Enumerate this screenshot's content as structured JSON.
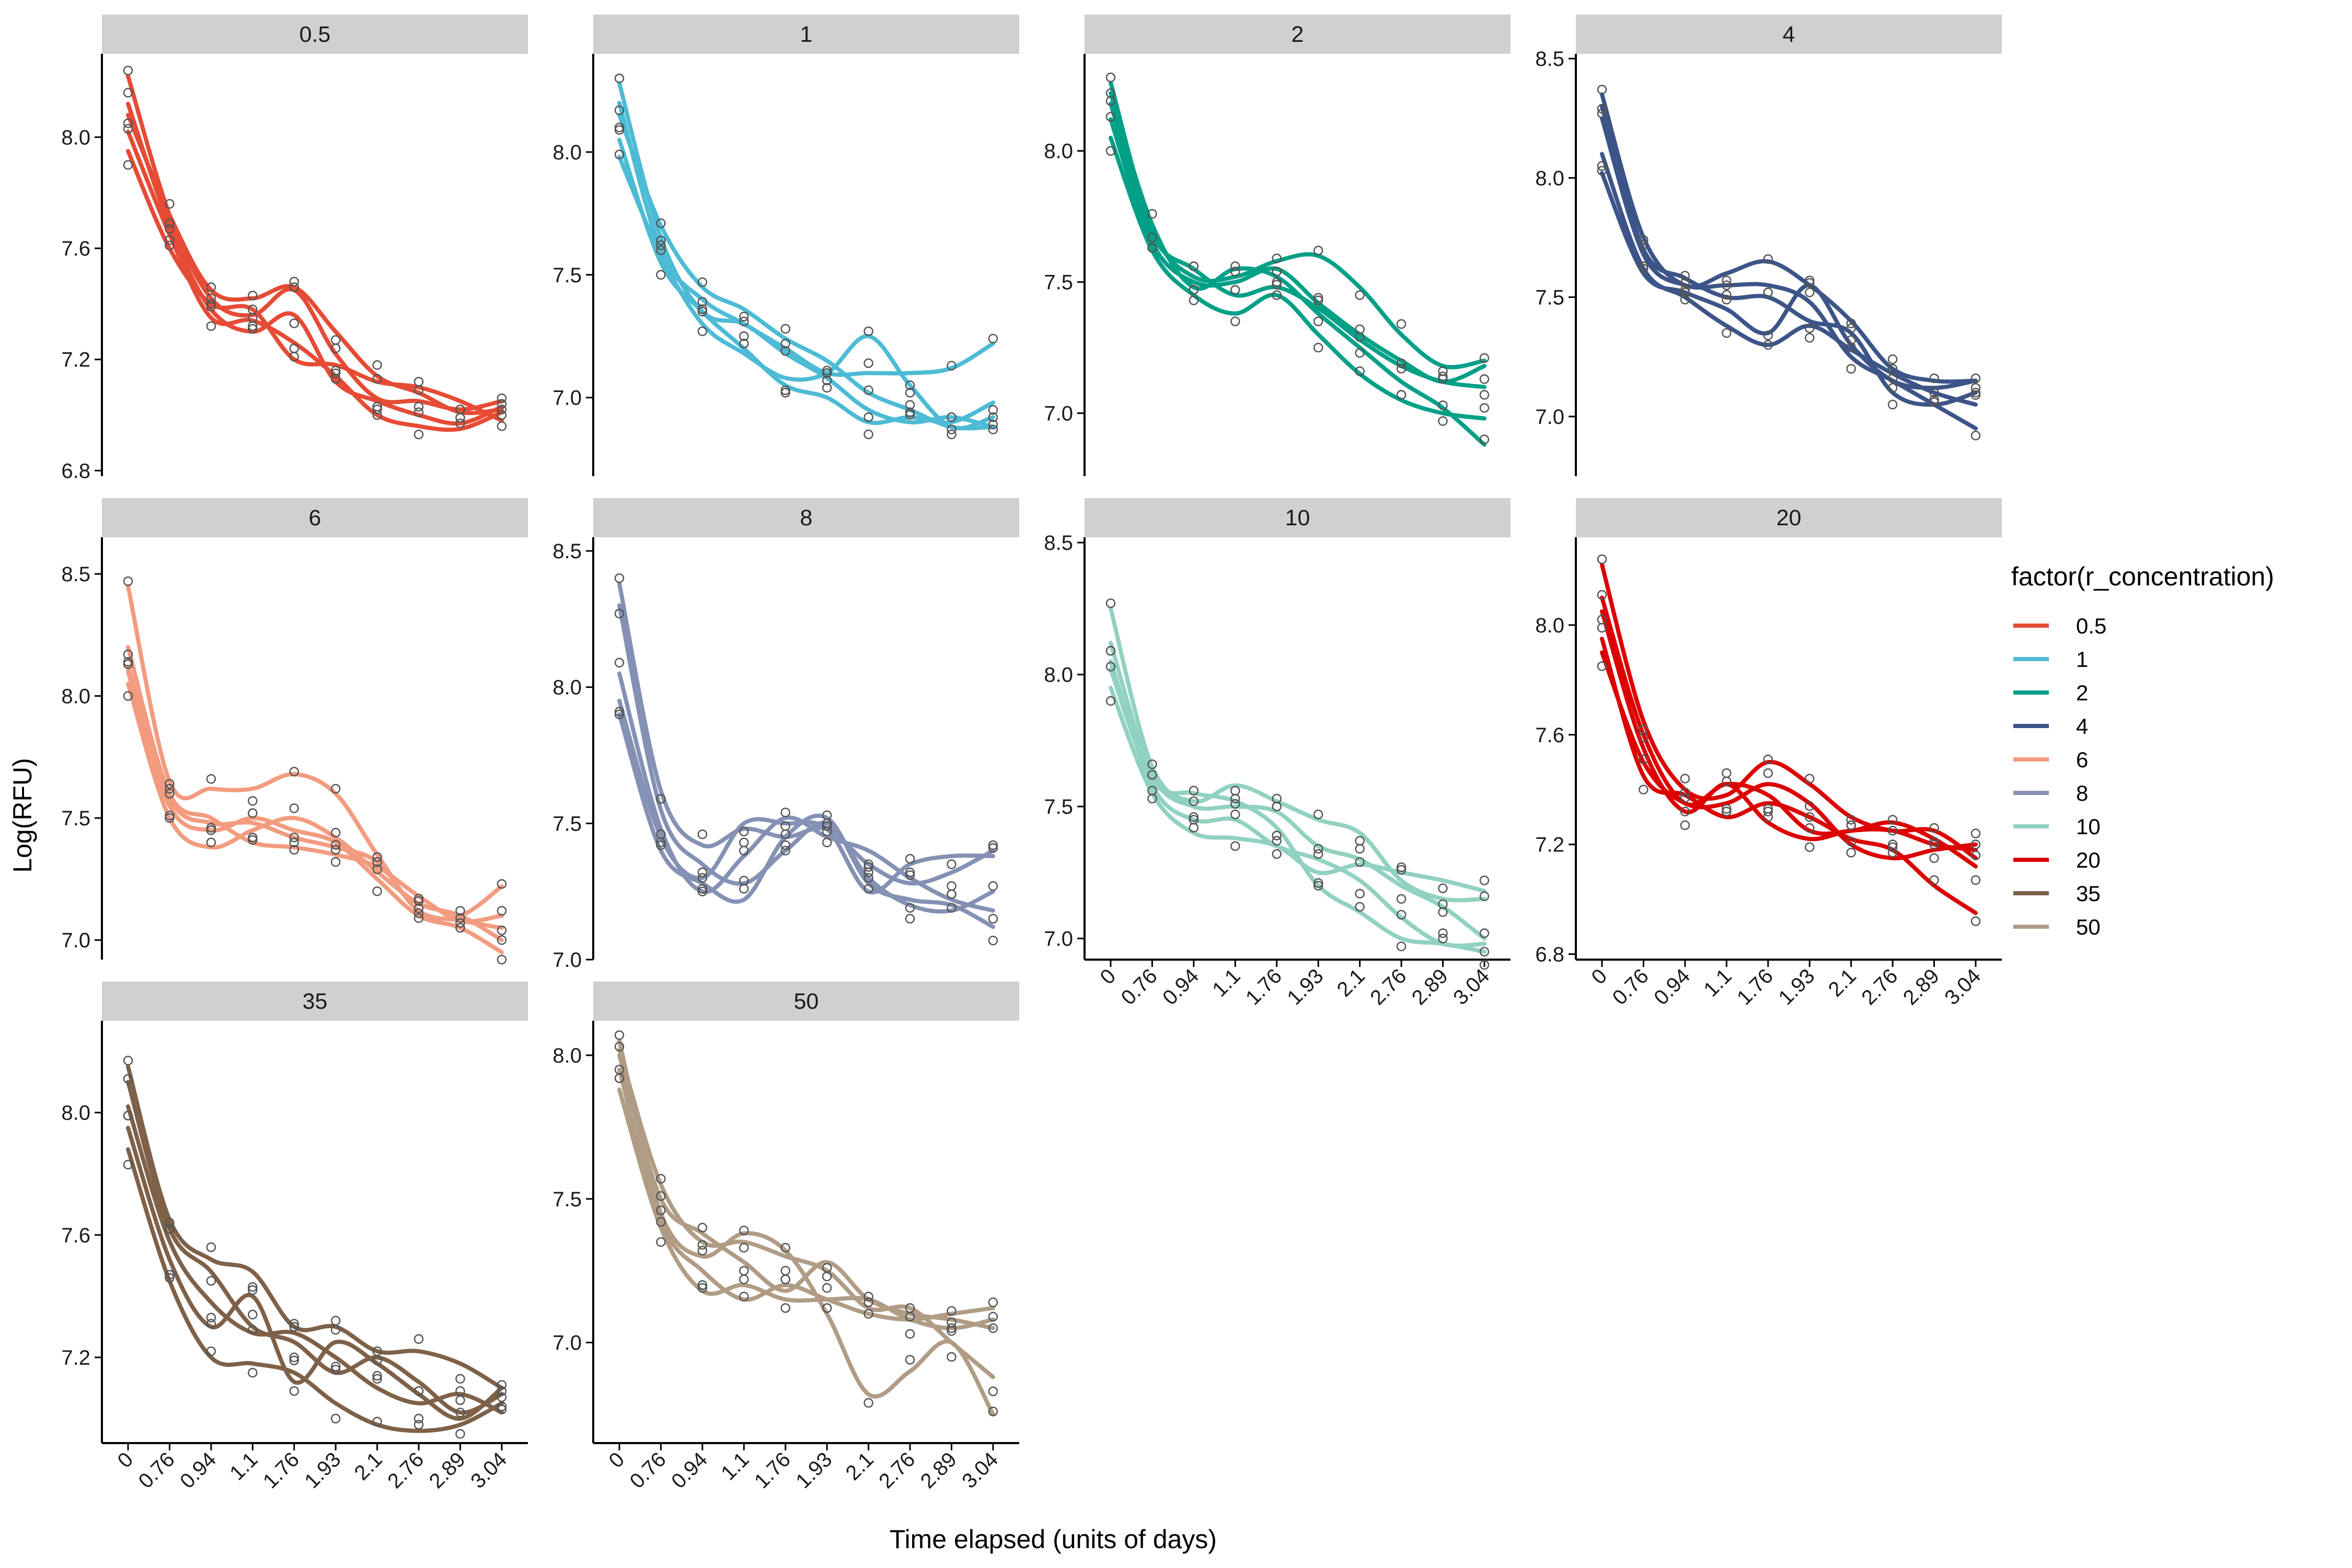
{
  "chart_data": {
    "type": "line",
    "xlabel": "Time elapsed (units of days)",
    "ylabel": "Log(RFU)",
    "x_categories": [
      "0",
      "0.76",
      "0.94",
      "1.1",
      "1.76",
      "1.93",
      "2.1",
      "2.76",
      "2.89",
      "3.04"
    ],
    "legend": {
      "title": "factor(r_concentration)",
      "entries": [
        {
          "label": "0.5",
          "color": "#E64B35"
        },
        {
          "label": "1",
          "color": "#4DBBD5"
        },
        {
          "label": "2",
          "color": "#00A087"
        },
        {
          "label": "4",
          "color": "#3C5488"
        },
        {
          "label": "6",
          "color": "#F39B7F"
        },
        {
          "label": "8",
          "color": "#8491B4"
        },
        {
          "label": "10",
          "color": "#91D1C2"
        },
        {
          "label": "20",
          "color": "#DC0000"
        },
        {
          "label": "35",
          "color": "#7E6148"
        },
        {
          "label": "50",
          "color": "#B09C85"
        }
      ]
    },
    "panels": [
      {
        "label": "0.5",
        "color": "#E64B35",
        "ylim": [
          6.78,
          8.3
        ],
        "yticks": [
          "6.8",
          "7.2",
          "7.6",
          "8.0"
        ],
        "show_x_axis": false,
        "series": [
          [
            8.22,
            7.72,
            7.42,
            7.36,
            7.45,
            7.22,
            7.06,
            7.05,
            7.02,
            7.05
          ],
          [
            8.08,
            7.72,
            7.45,
            7.42,
            7.46,
            7.3,
            7.14,
            7.08,
            7.01,
            7.02
          ],
          [
            8.12,
            7.68,
            7.38,
            7.3,
            7.36,
            7.12,
            7.05,
            7.0,
            6.97,
            7.03
          ],
          [
            7.95,
            7.6,
            7.4,
            7.38,
            7.2,
            7.18,
            7.12,
            7.1,
            7.05,
            6.98
          ],
          [
            8.02,
            7.65,
            7.35,
            7.34,
            7.26,
            7.14,
            7.0,
            6.96,
            6.95,
            7.01
          ]
        ]
      },
      {
        "label": "1",
        "color": "#4DBBD5",
        "ylim": [
          6.68,
          8.4
        ],
        "yticks": [
          "7.0",
          "7.5",
          "8.0"
        ],
        "show_x_axis": false,
        "series": [
          [
            8.28,
            7.65,
            7.35,
            7.3,
            7.18,
            7.08,
            6.95,
            6.9,
            6.92,
            6.88
          ],
          [
            8.2,
            7.6,
            7.4,
            7.3,
            7.2,
            7.1,
            7.1,
            7.1,
            7.12,
            7.22
          ],
          [
            8.05,
            7.55,
            7.35,
            7.2,
            7.05,
            7.0,
            6.9,
            6.92,
            6.9,
            6.98
          ],
          [
            8.15,
            7.7,
            7.45,
            7.36,
            7.24,
            7.15,
            7.02,
            6.95,
            6.88,
            6.88
          ],
          [
            7.98,
            7.58,
            7.3,
            7.18,
            7.08,
            7.1,
            7.25,
            7.05,
            6.88,
            6.92
          ]
        ]
      },
      {
        "label": "2",
        "color": "#00A087",
        "ylim": [
          6.76,
          8.37
        ],
        "yticks": [
          "7.0",
          "7.5",
          "8.0"
        ],
        "show_x_axis": false,
        "series": [
          [
            8.26,
            7.7,
            7.52,
            7.52,
            7.58,
            7.6,
            7.48,
            7.3,
            7.18,
            7.2
          ],
          [
            8.22,
            7.72,
            7.48,
            7.55,
            7.52,
            7.38,
            7.25,
            7.12,
            7.02,
            6.88
          ],
          [
            8.18,
            7.68,
            7.55,
            7.45,
            7.48,
            7.4,
            7.28,
            7.18,
            7.12,
            7.1
          ],
          [
            8.05,
            7.62,
            7.45,
            7.38,
            7.45,
            7.3,
            7.15,
            7.05,
            7.0,
            6.98
          ],
          [
            8.12,
            7.65,
            7.5,
            7.5,
            7.55,
            7.42,
            7.3,
            7.2,
            7.12,
            7.18
          ]
        ]
      },
      {
        "label": "4",
        "color": "#3C5488",
        "ylim": [
          6.75,
          8.52
        ],
        "yticks": [
          "7.0",
          "7.5",
          "8.0",
          "8.5"
        ],
        "show_x_axis": false,
        "series": [
          [
            8.35,
            7.75,
            7.55,
            7.6,
            7.65,
            7.55,
            7.4,
            7.2,
            7.15,
            7.15
          ],
          [
            8.3,
            7.7,
            7.58,
            7.5,
            7.5,
            7.4,
            7.35,
            7.1,
            7.05,
            7.1
          ],
          [
            8.25,
            7.68,
            7.55,
            7.55,
            7.55,
            7.48,
            7.25,
            7.15,
            7.05,
            6.95
          ],
          [
            8.1,
            7.62,
            7.5,
            7.38,
            7.3,
            7.38,
            7.28,
            7.18,
            7.1,
            7.05
          ],
          [
            8.02,
            7.6,
            7.52,
            7.45,
            7.35,
            7.55,
            7.3,
            7.15,
            7.12,
            7.15
          ]
        ]
      },
      {
        "label": "6",
        "color": "#F39B7F",
        "ylim": [
          6.92,
          8.65
        ],
        "yticks": [
          "7.0",
          "7.5",
          "8.0",
          "8.5"
        ],
        "show_x_axis": false,
        "series": [
          [
            8.45,
            7.65,
            7.62,
            7.62,
            7.68,
            7.6,
            7.35,
            7.12,
            7.1,
            7.22
          ],
          [
            8.2,
            7.6,
            7.5,
            7.4,
            7.38,
            7.35,
            7.3,
            7.18,
            7.08,
            7.1
          ],
          [
            8.1,
            7.55,
            7.45,
            7.5,
            7.45,
            7.4,
            7.25,
            7.1,
            7.05,
            6.95
          ],
          [
            8.05,
            7.5,
            7.38,
            7.45,
            7.5,
            7.42,
            7.28,
            7.15,
            7.1,
            7.0
          ],
          [
            8.12,
            7.58,
            7.48,
            7.48,
            7.42,
            7.38,
            7.32,
            7.12,
            7.08,
            7.05
          ]
        ]
      },
      {
        "label": "8",
        "color": "#8491B4",
        "ylim": [
          7.0,
          8.55
        ],
        "yticks": [
          "7.0",
          "7.5",
          "8.0",
          "8.5"
        ],
        "show_x_axis": false,
        "series": [
          [
            8.38,
            7.62,
            7.42,
            7.48,
            7.45,
            7.48,
            7.35,
            7.28,
            7.32,
            7.4
          ],
          [
            8.3,
            7.55,
            7.35,
            7.28,
            7.4,
            7.5,
            7.3,
            7.2,
            7.18,
            7.25
          ],
          [
            8.05,
            7.48,
            7.25,
            7.38,
            7.52,
            7.45,
            7.4,
            7.3,
            7.22,
            7.18
          ],
          [
            7.95,
            7.45,
            7.3,
            7.5,
            7.5,
            7.48,
            7.25,
            7.35,
            7.38,
            7.38
          ],
          [
            7.9,
            7.4,
            7.28,
            7.22,
            7.45,
            7.52,
            7.28,
            7.22,
            7.2,
            7.12
          ]
        ]
      },
      {
        "label": "10",
        "color": "#91D1C2",
        "ylim": [
          6.92,
          8.52
        ],
        "yticks": [
          "7.0",
          "7.5",
          "8.0",
          "8.5"
        ],
        "show_x_axis": true,
        "series": [
          [
            8.25,
            7.65,
            7.52,
            7.58,
            7.52,
            7.45,
            7.4,
            7.22,
            7.15,
            7.15
          ],
          [
            8.12,
            7.62,
            7.5,
            7.5,
            7.48,
            7.35,
            7.3,
            7.2,
            7.12,
            7.0
          ],
          [
            8.05,
            7.58,
            7.45,
            7.45,
            7.35,
            7.3,
            7.22,
            7.08,
            6.98,
            6.98
          ],
          [
            7.95,
            7.55,
            7.4,
            7.38,
            7.35,
            7.25,
            7.28,
            7.25,
            7.22,
            7.18
          ],
          [
            8.02,
            7.6,
            7.55,
            7.52,
            7.42,
            7.2,
            7.1,
            7.0,
            6.98,
            6.95
          ]
        ]
      },
      {
        "label": "20",
        "color": "#DC0000",
        "ylim": [
          6.78,
          8.32
        ],
        "yticks": [
          "6.8",
          "7.2",
          "7.6",
          "8.0"
        ],
        "show_x_axis": true,
        "series": [
          [
            8.22,
            7.65,
            7.4,
            7.38,
            7.5,
            7.42,
            7.3,
            7.25,
            7.25,
            7.15
          ],
          [
            8.05,
            7.55,
            7.32,
            7.42,
            7.28,
            7.22,
            7.25,
            7.25,
            7.2,
            7.18
          ],
          [
            7.95,
            7.45,
            7.38,
            7.3,
            7.35,
            7.3,
            7.22,
            7.18,
            7.05,
            6.95
          ],
          [
            7.9,
            7.5,
            7.35,
            7.35,
            7.42,
            7.35,
            7.2,
            7.15,
            7.18,
            7.2
          ],
          [
            8.1,
            7.6,
            7.35,
            7.42,
            7.38,
            7.25,
            7.25,
            7.28,
            7.22,
            7.12
          ]
        ]
      },
      {
        "label": "35",
        "color": "#7E6148",
        "ylim": [
          6.92,
          8.3
        ],
        "yticks": [
          "7.2",
          "7.6",
          "8.0"
        ],
        "show_x_axis": true,
        "series": [
          [
            8.15,
            7.65,
            7.52,
            7.48,
            7.3,
            7.3,
            7.22,
            7.22,
            7.18,
            7.1
          ],
          [
            8.02,
            7.58,
            7.38,
            7.28,
            7.28,
            7.2,
            7.1,
            7.05,
            7.08,
            7.02
          ],
          [
            7.95,
            7.52,
            7.3,
            7.4,
            7.12,
            7.25,
            7.18,
            7.08,
            7.0,
            7.1
          ],
          [
            7.88,
            7.45,
            7.2,
            7.18,
            7.15,
            7.05,
            6.98,
            6.96,
            6.98,
            7.05
          ],
          [
            8.1,
            7.62,
            7.48,
            7.3,
            7.25,
            7.15,
            7.2,
            7.12,
            7.02,
            7.08
          ]
        ]
      },
      {
        "label": "50",
        "color": "#B09C85",
        "ylim": [
          6.65,
          8.12
        ],
        "yticks": [
          "7.0",
          "7.5",
          "8.0"
        ],
        "show_x_axis": true,
        "series": [
          [
            8.05,
            7.45,
            7.3,
            7.38,
            7.32,
            7.1,
            6.82,
            6.9,
            7.0,
            6.75
          ],
          [
            7.95,
            7.42,
            7.25,
            7.15,
            7.2,
            7.15,
            7.1,
            7.08,
            7.1,
            7.12
          ],
          [
            7.88,
            7.4,
            7.18,
            7.2,
            7.15,
            7.15,
            7.15,
            7.08,
            7.05,
            7.08
          ],
          [
            8.0,
            7.5,
            7.38,
            7.28,
            7.18,
            7.28,
            7.15,
            7.1,
            7.08,
            7.05
          ],
          [
            8.02,
            7.55,
            7.35,
            7.35,
            7.3,
            7.25,
            7.12,
            7.12,
            7.0,
            6.88
          ]
        ]
      }
    ]
  }
}
